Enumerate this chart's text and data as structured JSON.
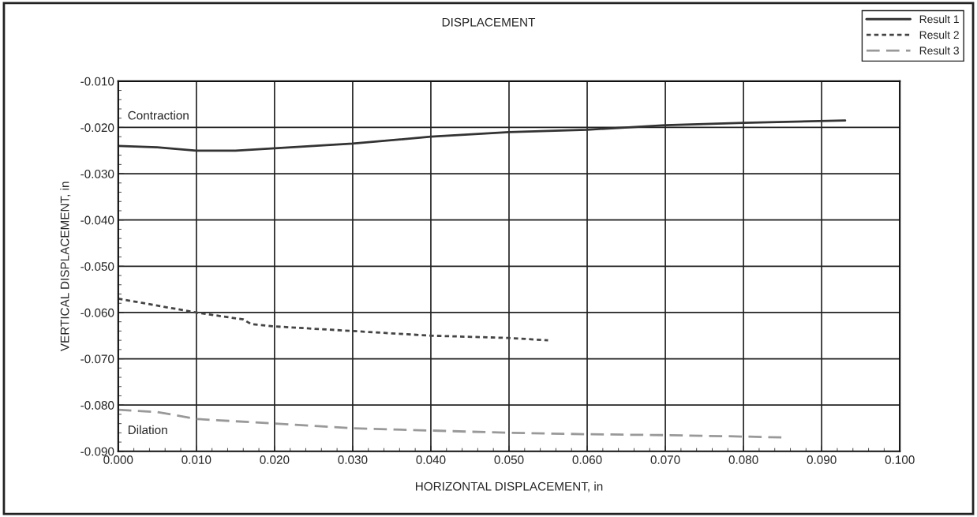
{
  "chart_data": {
    "type": "line",
    "title": "DISPLACEMENT",
    "xlabel": "HORIZONTAL DISPLACEMENT, in",
    "ylabel": "VERTICAL DISPLACEMENT, in",
    "annotations": [
      "Contraction",
      "Dilation"
    ],
    "series": [
      {
        "name": "Result 1",
        "color": "#333333",
        "line_style": "solid",
        "x": [
          0,
          0.005,
          0.01,
          0.015,
          0.02,
          0.03,
          0.04,
          0.05,
          0.06,
          0.07,
          0.08,
          0.093
        ],
        "values": [
          -0.024,
          -0.0243,
          -0.025,
          -0.025,
          -0.0245,
          -0.0235,
          -0.022,
          -0.021,
          -0.0205,
          -0.0195,
          -0.019,
          -0.0185
        ]
      },
      {
        "name": "Result 2",
        "color": "#444444",
        "line_style": "dotted",
        "x": [
          0,
          0.005,
          0.01,
          0.016,
          0.0165,
          0.017,
          0.02,
          0.03,
          0.04,
          0.05,
          0.055
        ],
        "values": [
          -0.057,
          -0.0585,
          -0.06,
          -0.0615,
          -0.062,
          -0.0625,
          -0.063,
          -0.064,
          -0.065,
          -0.0655,
          -0.066
        ]
      },
      {
        "name": "Result 3",
        "color": "#999999",
        "line_style": "dashed",
        "x": [
          0,
          0.005,
          0.01,
          0.015,
          0.02,
          0.03,
          0.04,
          0.05,
          0.06,
          0.07,
          0.08,
          0.085
        ],
        "values": [
          -0.081,
          -0.0815,
          -0.083,
          -0.0835,
          -0.084,
          -0.085,
          -0.0855,
          -0.086,
          -0.0863,
          -0.0865,
          -0.0868,
          -0.087
        ]
      }
    ],
    "xlim": [
      0,
      0.1
    ],
    "ylim": [
      -0.09,
      -0.01
    ],
    "xticks": [
      {
        "value": 0,
        "label": "0.000"
      },
      {
        "value": 0.01,
        "label": "0.010"
      },
      {
        "value": 0.02,
        "label": "0.020"
      },
      {
        "value": 0.03,
        "label": "0.030"
      },
      {
        "value": 0.04,
        "label": "0.040"
      },
      {
        "value": 0.05,
        "label": "0.050"
      },
      {
        "value": 0.06,
        "label": "0.060"
      },
      {
        "value": 0.07,
        "label": "0.070"
      },
      {
        "value": 0.08,
        "label": "0.080"
      },
      {
        "value": 0.09,
        "label": "0.090"
      },
      {
        "value": 0.1,
        "label": "0.100"
      }
    ],
    "yticks": [
      {
        "value": -0.09,
        "label": "-0.090"
      },
      {
        "value": -0.08,
        "label": "-0.080"
      },
      {
        "value": -0.07,
        "label": "-0.070"
      },
      {
        "value": -0.06,
        "label": "-0.060"
      },
      {
        "value": -0.05,
        "label": "-0.050"
      },
      {
        "value": -0.04,
        "label": "-0.040"
      },
      {
        "value": -0.03,
        "label": "-0.030"
      },
      {
        "value": -0.02,
        "label": "-0.020"
      },
      {
        "value": -0.01,
        "label": "-0.010"
      }
    ],
    "grid": true,
    "legend": "top right",
    "marker": "none"
  }
}
